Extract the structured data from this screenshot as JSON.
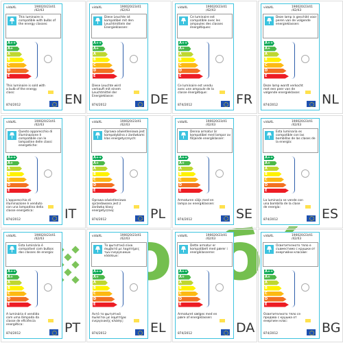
{
  "label": {
    "brand": "vidaXL",
    "model_line1": "190020/23/41",
    "model_line2": "/42/43",
    "regulation": "874/2012",
    "classes": [
      "A++",
      "A+",
      "A",
      "B",
      "C",
      "D",
      "E"
    ]
  },
  "labels": [
    {
      "lang": "EN",
      "compatible_text": "This luminaire is compatible with bulbs of the energy classes:",
      "sold_text": "This luminaire is sold with a bulb of the energy class:"
    },
    {
      "lang": "DE",
      "compatible_text": "Diese Leuchte ist kompatibel mit den Leuchtmitteln der Energieklassen:",
      "sold_text": "Diese Leuchte wird verkauft mit einem Leuchtmittel der Energieklasse:"
    },
    {
      "lang": "FR",
      "compatible_text": "Ce luminaire est compatible avec les ampoules des classes énergétiques:",
      "sold_text": "Ce luminaire est vendu avec une ampoule de la classe énergétique:"
    },
    {
      "lang": "NL",
      "compatible_text": "Deze lamp is geschikt voor peren van de volgende energieklassen:",
      "sold_text": "Deze lamp wordt verkocht met een peer van de volgende energieklasse:"
    },
    {
      "lang": "IT",
      "compatible_text": "Questo apparecchio di illuminazione è compatibile con le lampadine delle classi energetiche:",
      "sold_text": "L'apparecchio di illuminazione è venduto con una lampadina della classe energetica:"
    },
    {
      "lang": "PL",
      "compatible_text": "Oprawa oświetleniowa jest kompatybilna z żarówkami klas energetycznych:",
      "sold_text": "Oprawa oświetleniowa sprzedawana jest z żarówką klasy energetycznej:"
    },
    {
      "lang": "SE",
      "compatible_text": "Denna armatur är kompatibel med lampor av följande energiklasser:",
      "sold_text": "Armaturen säljs med en lampa av energiklassen:"
    },
    {
      "lang": "ES",
      "compatible_text": "Esta luminaria es compatible con las bombillas de las clases de la energía:",
      "sold_text": "La luminaria se vende con una bombilla de la clase de energía:"
    },
    {
      "lang": "PT",
      "compatible_text": "Esta luminária é compatível com bulbos das classes de energia:",
      "sold_text": "A luminária é vendido com uma lâmpada da classe de eficiência energética:"
    },
    {
      "lang": "EL",
      "compatible_text": "Το φωτιστικό είναι συμβατό με λαμπτήρες των ενεργειακών κλάσεων:",
      "sold_text": "Αυτό το φωτιστικό πωλείται με λαμπτήρα ενεργειακής κλάσης:"
    },
    {
      "lang": "DA",
      "compatible_text": "Dette armatur er kompatibelt med pærer i energiklasserne:",
      "sold_text": "Armaturet sælges med en pære af energiklassen:"
    },
    {
      "lang": "BG",
      "compatible_text": "Осветителното тяло е съвместимо с крушки от енергийни класове:",
      "sold_text": "Осветителното тяло се продава с крушка от енергиен клас:"
    }
  ],
  "watermark": "сорбé"
}
